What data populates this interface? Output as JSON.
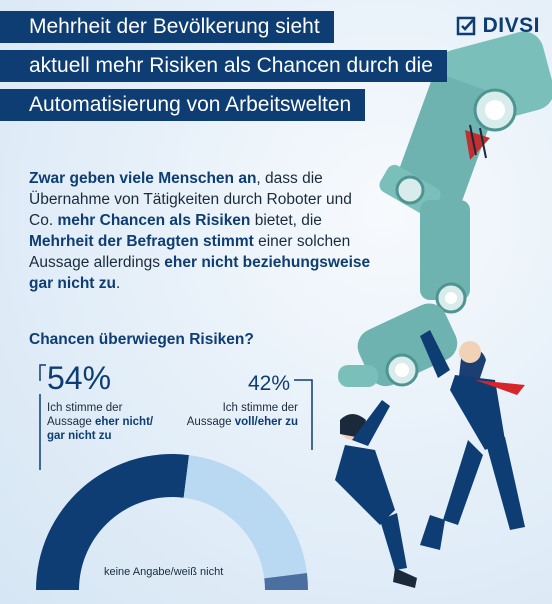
{
  "title_lines": [
    "Mehrheit der Bevölkerung sieht",
    "aktuell mehr Risiken als Chancen durch die",
    "Automatisierung von Arbeitswelten"
  ],
  "logo": {
    "text": "DIVSI",
    "icon": "check-box-icon"
  },
  "intro": {
    "p1_bold": "Zwar geben viele Menschen an",
    "p2": ", dass die Übernahme von Tätigkeiten durch Roboter und Co. ",
    "p3_bold": "mehr Chancen als Risiken",
    "p4": " bietet, die ",
    "p5_bold": "Mehrheit der Befragten stimmt",
    "p6": " einer solchen Aussage allerdings ",
    "p7_bold": "eher nicht beziehungsweise gar nicht zu",
    "p8": "."
  },
  "question": "Chancen überwiegen Risiken?",
  "chart_data": {
    "type": "pie",
    "categories": [
      "Ich stimme der Aussage eher nicht/gar nicht zu",
      "Ich stimme der Aussage voll/eher zu",
      "keine Angabe/weiß nicht"
    ],
    "values": [
      54,
      42,
      4
    ],
    "colors": [
      "#0d3d73",
      "#b9d9f3",
      "#4a6fa0"
    ],
    "labels": {
      "disagree_pct": "54%",
      "disagree_text_1": "Ich stimme der",
      "disagree_text_2": "Aussage ",
      "disagree_text_bold": "eher nicht/ gar nicht zu",
      "agree_pct": "42%",
      "agree_text_1": "Ich stimme der",
      "agree_text_2": "Aussage ",
      "agree_text_bold": "voll/eher zu",
      "na_text": "keine Angabe/weiß nicht"
    }
  },
  "colors": {
    "brand": "#0d3d73",
    "background": "#e9f1f9",
    "robot": "#6fb3b0"
  }
}
